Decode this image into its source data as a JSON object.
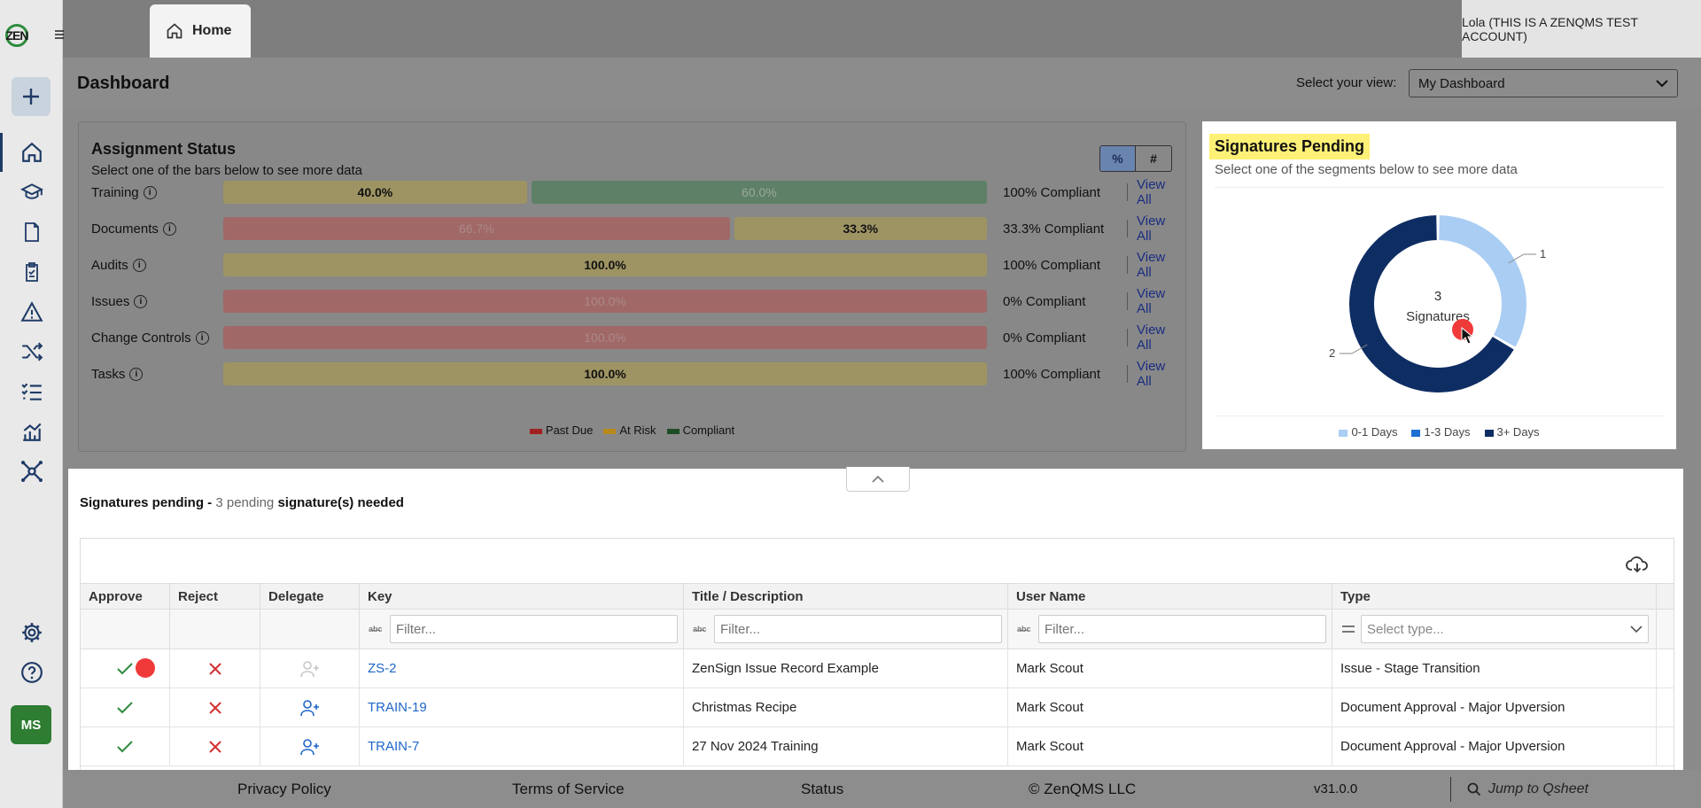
{
  "app": {
    "logo_text": "ZEN",
    "user_label": "Lola (THIS IS A ZENQMS TEST ACCOUNT)",
    "avatar_initials": "MS"
  },
  "tabs": [
    {
      "label": "Home",
      "icon": "home-icon"
    }
  ],
  "sidebar": {
    "items": [
      {
        "name": "home",
        "icon": "home-icon",
        "active": true
      },
      {
        "name": "training",
        "icon": "graduation-cap-icon"
      },
      {
        "name": "documents",
        "icon": "document-icon"
      },
      {
        "name": "audits",
        "icon": "clipboard-check-icon"
      },
      {
        "name": "issues",
        "icon": "warning-triangle-icon"
      },
      {
        "name": "change-controls",
        "icon": "shuffle-icon"
      },
      {
        "name": "tasks",
        "icon": "list-check-icon"
      },
      {
        "name": "reports",
        "icon": "chart-icon"
      },
      {
        "name": "network",
        "icon": "network-icon"
      }
    ],
    "bottom": [
      {
        "name": "settings",
        "icon": "gear-icon"
      },
      {
        "name": "help",
        "icon": "question-icon"
      }
    ]
  },
  "dashboard": {
    "title": "Dashboard",
    "view_label": "Select your view:",
    "view_value": "My Dashboard"
  },
  "assignment": {
    "title": "Assignment Status",
    "subtitle": "Select one of the bars below to see more data",
    "toggle_percent": "%",
    "toggle_count": "#",
    "view_all": "View All",
    "rows": [
      {
        "label": "Training",
        "bars": [
          {
            "kind": "risk",
            "pct": 40.0,
            "text": "40.0%"
          },
          {
            "kind": "comp",
            "pct": 60.0,
            "text": "60.0%"
          }
        ],
        "compliance": "100% Compliant"
      },
      {
        "label": "Documents",
        "bars": [
          {
            "kind": "due",
            "pct": 66.7,
            "text": "66.7%"
          },
          {
            "kind": "risk",
            "pct": 33.3,
            "text": "33.3%"
          }
        ],
        "compliance": "33.3% Compliant"
      },
      {
        "label": "Audits",
        "bars": [
          {
            "kind": "risk",
            "pct": 100.0,
            "text": "100.0%"
          }
        ],
        "compliance": "100% Compliant"
      },
      {
        "label": "Issues",
        "bars": [
          {
            "kind": "due",
            "pct": 100.0,
            "text": "100.0%"
          }
        ],
        "compliance": "0% Compliant"
      },
      {
        "label": "Change Controls",
        "bars": [
          {
            "kind": "due",
            "pct": 100.0,
            "text": "100.0%"
          }
        ],
        "compliance": "0% Compliant"
      },
      {
        "label": "Tasks",
        "bars": [
          {
            "kind": "risk",
            "pct": 100.0,
            "text": "100.0%"
          }
        ],
        "compliance": "100% Compliant"
      }
    ],
    "legend": [
      {
        "label": "Past Due",
        "color": "#a32020"
      },
      {
        "label": "At Risk",
        "color": "#b8891c"
      },
      {
        "label": "Compliant",
        "color": "#1d4d25"
      }
    ]
  },
  "signatures_card": {
    "title": "Signatures Pending",
    "subtitle": "Select one of the segments below to see more data",
    "center_count": "3",
    "center_label": "Signatures",
    "legend": [
      {
        "label": "0-1 Days",
        "color": "#a9cdf3"
      },
      {
        "label": "1-3 Days",
        "color": "#1f6fd1"
      },
      {
        "label": "3+ Days",
        "color": "#0e2d63"
      }
    ]
  },
  "chart_data": {
    "type": "pie",
    "categories": [
      "0-1 Days",
      "1-3 Days",
      "3+ Days"
    ],
    "values": [
      1,
      0,
      2
    ],
    "data_labels": [
      "1",
      "",
      "2"
    ],
    "title": "Signatures Pending",
    "donut": true,
    "center_text": "3 Signatures",
    "legend_position": "bottom"
  },
  "pending": {
    "title_bold": "Signatures pending -",
    "title_count": "3 pending",
    "title_rest": "signature(s) needed",
    "columns": [
      "Approve",
      "Reject",
      "Delegate",
      "Key",
      "Title / Description",
      "User Name",
      "Type"
    ],
    "filter_placeholder": "Filter...",
    "type_placeholder": "Select type...",
    "rows": [
      {
        "key": "ZS-2",
        "title": "ZenSign Issue Record Example",
        "user": "Mark Scout",
        "type": "Issue - Stage Transition",
        "delegate_enabled": false
      },
      {
        "key": "TRAIN-19",
        "title": "Christmas Recipe",
        "user": "Mark Scout",
        "type": "Document Approval - Major Upversion",
        "delegate_enabled": true
      },
      {
        "key": "TRAIN-7",
        "title": "27 Nov 2024 Training",
        "user": "Mark Scout",
        "type": "Document Approval - Major Upversion",
        "delegate_enabled": true
      }
    ]
  },
  "footer": {
    "privacy": "Privacy Policy",
    "terms": "Terms of Service",
    "status": "Status",
    "copyright": "© ZenQMS LLC",
    "version": "v31.0.0",
    "search_placeholder": "Jump to Qsheet"
  }
}
